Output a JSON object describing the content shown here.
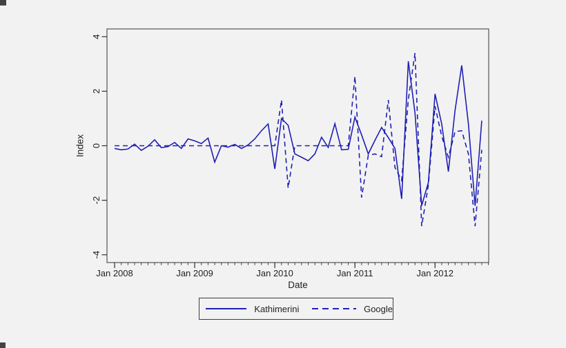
{
  "window": {
    "background": "#f2f2f2",
    "border_color": "#5f5f5f"
  },
  "chart_data": {
    "type": "line",
    "title": "",
    "xlabel": "Date",
    "ylabel": "Index",
    "ylim": [
      -4,
      4
    ],
    "yticks": [
      "-4",
      "-2",
      "0",
      "2",
      "4"
    ],
    "ytick_values": [
      -4,
      -2,
      0,
      2,
      4
    ],
    "grid": false,
    "frequency": "monthly",
    "x_start": "Jan 2008",
    "x_end": "Aug 2012",
    "x_major_tick_labels": [
      "Jan 2008",
      "Jan 2009",
      "Jan 2010",
      "Jan 2011",
      "Jan 2012"
    ],
    "x_major_tick_month_index": [
      0,
      12,
      24,
      36,
      48
    ],
    "x_minor_tick_count": 57,
    "legend": {
      "position": "bottom-center",
      "entries": [
        "Kathimerini",
        "Google"
      ]
    },
    "series": [
      {
        "name": "Kathimerini",
        "line_style": "solid",
        "color": "#1e1eb4",
        "values": [
          -0.1,
          -0.15,
          -0.12,
          0.06,
          -0.17,
          -0.02,
          0.22,
          -0.07,
          -0.03,
          0.12,
          -0.1,
          0.25,
          0.18,
          0.08,
          0.28,
          -0.6,
          0.0,
          -0.05,
          0.05,
          -0.1,
          0.03,
          0.25,
          0.55,
          0.8,
          -0.85,
          1.0,
          0.75,
          -0.3,
          -0.42,
          -0.55,
          -0.3,
          0.31,
          -0.06,
          0.81,
          -0.15,
          -0.13,
          1.05,
          0.4,
          -0.3,
          0.2,
          0.67,
          0.3,
          -0.1,
          -1.95,
          3.1,
          1.2,
          -2.2,
          -1.35,
          1.9,
          0.8,
          -0.95,
          1.3,
          2.95,
          0.8,
          -2.2,
          0.92
        ]
      },
      {
        "name": "Google",
        "line_style": "dashed",
        "color": "#1e1eb4",
        "values": [
          0,
          0,
          0,
          0,
          0,
          0,
          0,
          0,
          0,
          0,
          0,
          0,
          0,
          0,
          0,
          0,
          0,
          0,
          0,
          0,
          0,
          0,
          0,
          0,
          0,
          1.68,
          -1.55,
          0,
          0,
          0,
          0,
          0,
          0,
          0,
          0,
          0,
          2.55,
          -1.9,
          -0.35,
          -0.3,
          -0.4,
          1.68,
          -0.8,
          -1.27,
          1.7,
          3.4,
          -2.95,
          -1.45,
          1.45,
          0.35,
          -0.42,
          0.52,
          0.55,
          -0.3,
          -2.95,
          -0.15
        ]
      }
    ]
  }
}
